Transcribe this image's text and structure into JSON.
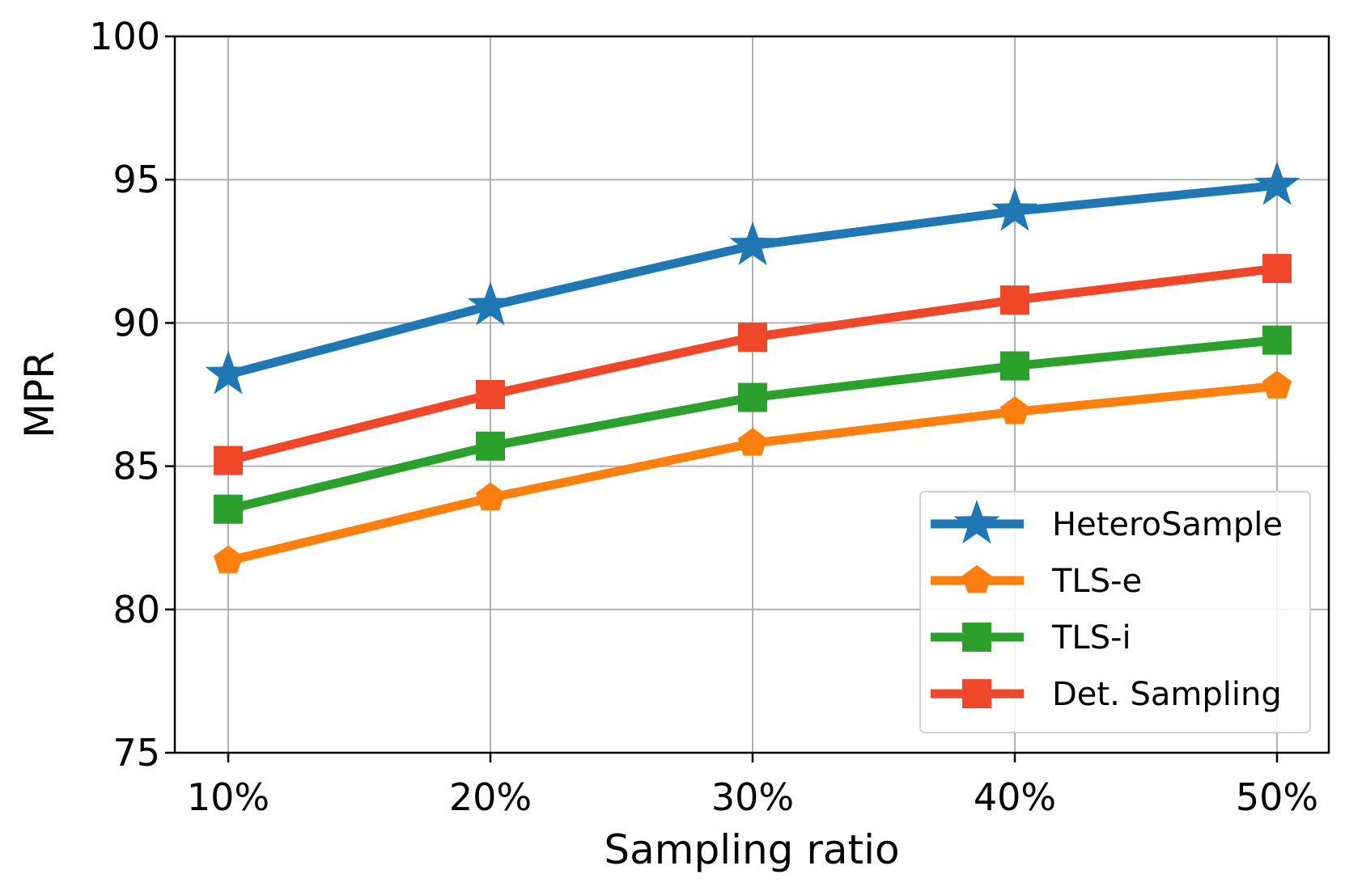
{
  "chart_data": {
    "type": "line",
    "title": "",
    "xlabel": "Sampling ratio",
    "ylabel": "MPR",
    "categories": [
      "10%",
      "20%",
      "30%",
      "40%",
      "50%"
    ],
    "ylim": [
      75,
      100
    ],
    "yticks": [
      75,
      80,
      85,
      90,
      95,
      100
    ],
    "grid": true,
    "legend": "lower-right",
    "series": [
      {
        "name": "HeteroSample",
        "values": [
          88.2,
          90.6,
          92.7,
          93.9,
          94.8
        ],
        "color": "#1f77b4",
        "marker": "star"
      },
      {
        "name": "TLS-e",
        "values": [
          81.7,
          83.9,
          85.8,
          86.9,
          87.8
        ],
        "color": "#ff7f0e",
        "marker": "pentagon"
      },
      {
        "name": "TLS-i",
        "values": [
          83.5,
          85.7,
          87.4,
          88.5,
          89.4
        ],
        "color": "#2ca02c",
        "marker": "square"
      },
      {
        "name": "Det. Sampling",
        "values": [
          85.2,
          87.5,
          89.5,
          90.8,
          91.9
        ],
        "color": "#f0462a",
        "marker": "square"
      }
    ]
  }
}
